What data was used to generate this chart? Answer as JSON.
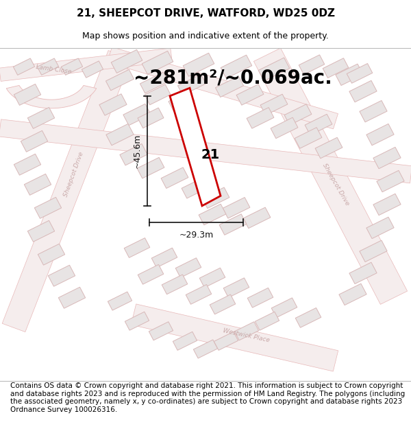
{
  "title": "21, SHEEPCOT DRIVE, WATFORD, WD25 0DZ",
  "subtitle": "Map shows position and indicative extent of the property.",
  "area_text": "~281m²/~0.069ac.",
  "dim_width": "~29.3m",
  "dim_height": "~45.6m",
  "plot_number": "21",
  "footer": "Contains OS data © Crown copyright and database right 2021. This information is subject to Crown copyright and database rights 2023 and is reproduced with the permission of HM Land Registry. The polygons (including the associated geometry, namely x, y co-ordinates) are subject to Crown copyright and database rights 2023 Ordnance Survey 100026316.",
  "bg_color": "#ffffff",
  "map_bg": "#f8f8f8",
  "road_line_color": "#e8b8b8",
  "road_fill_color": "#f5eded",
  "block_fill": "#e8e4e4",
  "block_edge": "#d8b8b8",
  "highlight_color": "#cc0000",
  "road_label_color": "#c8a8a8",
  "dim_color": "#111111",
  "title_fontsize": 11,
  "subtitle_fontsize": 9,
  "area_fontsize": 20,
  "footer_fontsize": 7.5,
  "label_fontsize": 6.5,
  "plot_label_fontsize": 14
}
